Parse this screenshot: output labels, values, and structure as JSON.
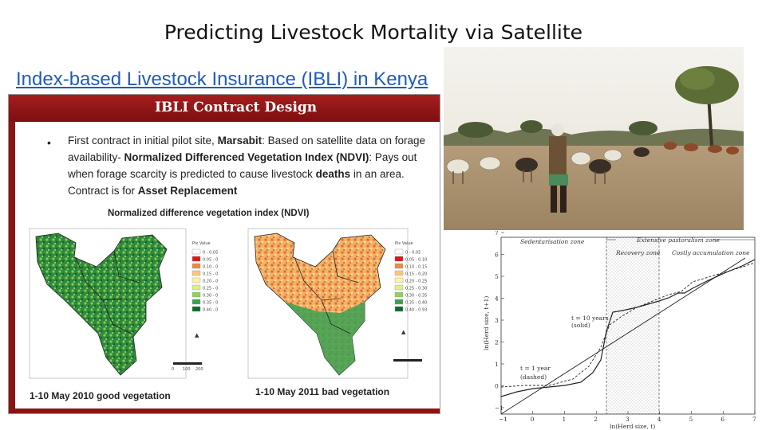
{
  "page": {
    "title": "Predicting Livestock Mortality via Satellite",
    "link_text": "Index-based Livestock Insurance (IBLI) in Kenya"
  },
  "slide": {
    "header_title": "IBLI Contract Design",
    "bullet": {
      "p1": "First contract in initial pilot site, ",
      "b1": "Marsabit",
      "p2": ": Based on satellite data on forage availability- ",
      "b2": "Normalized Differenced Vegetation Index (NDVI)",
      "p3": ": Pays out when forage scarcity is predicted to cause livestock ",
      "b3": "deaths",
      "p4": " in an area.  Contract is for ",
      "b4": "Asset Replacement"
    },
    "ndvi_title": "Normalized difference vegetation index (NDVI)",
    "caption_left": "1-10 May 2010 good vegetation",
    "caption_right": "1-10 May 2011 bad vegetation",
    "legend_header": "Pix Value",
    "legend": [
      "0 - 0.05",
      "0.05 - 0.10",
      "0.10 - 0.15",
      "0.15 - 0.20",
      "0.20 - 0.25",
      "0.25 - 0.30",
      "0.30 - 0.35",
      "0.35 - 0.40",
      "0.40 - 0.93"
    ],
    "legend_colors": [
      "#ffffff",
      "#d7191c",
      "#f08a3a",
      "#fdc777",
      "#fff2a8",
      "#d9ef8b",
      "#91cf60",
      "#3ba153",
      "#0e6b2b"
    ],
    "scale_labels": [
      "0",
      "100",
      "200"
    ]
  },
  "graph": {
    "zone_labels": [
      "Sedentarisation zone",
      "Extensive pastoralism zone",
      "Recovery zone",
      "Costly accumulation zone"
    ],
    "ylabel": "ln(Herd size, t+1)",
    "xlabel": "ln(Herd size, t)",
    "x_ticks": [
      "−1",
      "0",
      "1",
      "2",
      "3",
      "4",
      "5",
      "6",
      "7"
    ],
    "y_ticks": [
      "−1",
      "0",
      "1",
      "2",
      "3",
      "4",
      "5",
      "6",
      "7"
    ],
    "annot_10yr_line1": "t = 10 years",
    "annot_10yr_line2": "(solid)",
    "annot_1yr_line1": "t = 1 year",
    "annot_1yr_line2": "(dashed)"
  }
}
